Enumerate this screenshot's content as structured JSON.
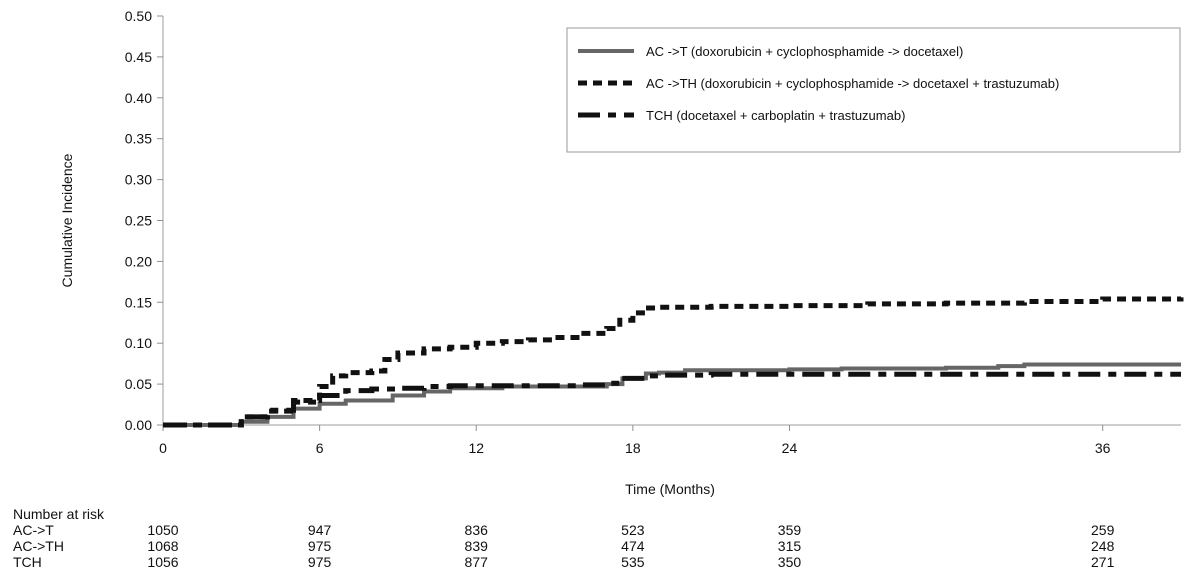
{
  "chart_data": {
    "type": "line",
    "title": "",
    "xlabel": "Time (Months)",
    "ylabel": "Cumulative Incidence",
    "xlim": [
      0,
      39
    ],
    "ylim": [
      0,
      0.5
    ],
    "x_ticks": [
      "0",
      "6",
      "12",
      "18",
      "24",
      "36"
    ],
    "y_ticks": [
      "0.00",
      "0.05",
      "0.10",
      "0.15",
      "0.20",
      "0.25",
      "0.30",
      "0.35",
      "0.40",
      "0.45",
      "0.50"
    ],
    "grid": false,
    "legend_position": "top-right",
    "series": [
      {
        "name": "AC ->T (doxorubicin + cyclophosphamide -> docetaxel)",
        "color": "#666666",
        "style": "solid",
        "points": [
          [
            0,
            0.0
          ],
          [
            2.6,
            0.0
          ],
          [
            3.0,
            0.004
          ],
          [
            4.0,
            0.01
          ],
          [
            5.0,
            0.02
          ],
          [
            6.0,
            0.026
          ],
          [
            7.0,
            0.03
          ],
          [
            8.0,
            0.03
          ],
          [
            8.8,
            0.036
          ],
          [
            10.0,
            0.041
          ],
          [
            11.0,
            0.045
          ],
          [
            12.0,
            0.045
          ],
          [
            13.0,
            0.047
          ],
          [
            14.0,
            0.047
          ],
          [
            16.0,
            0.047
          ],
          [
            17.0,
            0.05
          ],
          [
            17.6,
            0.057
          ],
          [
            18.5,
            0.063
          ],
          [
            19.0,
            0.064
          ],
          [
            20.0,
            0.067
          ],
          [
            21.0,
            0.067
          ],
          [
            24.0,
            0.068
          ],
          [
            26.0,
            0.069
          ],
          [
            30.0,
            0.07
          ],
          [
            32.0,
            0.072
          ],
          [
            33.0,
            0.074
          ],
          [
            36.0,
            0.074
          ],
          [
            39.0,
            0.074
          ]
        ]
      },
      {
        "name": "AC ->TH (doxorubicin + cyclophosphamide -> docetaxel + trastuzumab)",
        "color": "#111111",
        "style": "dotted",
        "points": [
          [
            0,
            0.0
          ],
          [
            2.5,
            0.0
          ],
          [
            3.0,
            0.01
          ],
          [
            4.0,
            0.017
          ],
          [
            5.0,
            0.03
          ],
          [
            6.0,
            0.047
          ],
          [
            6.5,
            0.06
          ],
          [
            7.0,
            0.064
          ],
          [
            8.0,
            0.066
          ],
          [
            8.5,
            0.08
          ],
          [
            9.0,
            0.088
          ],
          [
            10.0,
            0.093
          ],
          [
            11.0,
            0.095
          ],
          [
            12.0,
            0.1
          ],
          [
            13.0,
            0.102
          ],
          [
            14.0,
            0.104
          ],
          [
            15.0,
            0.107
          ],
          [
            16.0,
            0.112
          ],
          [
            17.0,
            0.118
          ],
          [
            17.5,
            0.128
          ],
          [
            18.0,
            0.137
          ],
          [
            18.5,
            0.143
          ],
          [
            19.0,
            0.144
          ],
          [
            21.0,
            0.145
          ],
          [
            24.0,
            0.146
          ],
          [
            27.0,
            0.148
          ],
          [
            30.0,
            0.149
          ],
          [
            33.0,
            0.151
          ],
          [
            36.0,
            0.154
          ],
          [
            39.0,
            0.156
          ]
        ]
      },
      {
        "name": "TCH (docetaxel + carboplatin + trastuzumab)",
        "color": "#111111",
        "style": "dashdot",
        "points": [
          [
            0,
            0.0
          ],
          [
            2.5,
            0.0
          ],
          [
            3.0,
            0.01
          ],
          [
            4.0,
            0.018
          ],
          [
            5.0,
            0.028
          ],
          [
            6.0,
            0.036
          ],
          [
            7.0,
            0.042
          ],
          [
            8.0,
            0.044
          ],
          [
            9.0,
            0.045
          ],
          [
            10.0,
            0.047
          ],
          [
            11.0,
            0.048
          ],
          [
            12.0,
            0.048
          ],
          [
            14.0,
            0.048
          ],
          [
            16.0,
            0.049
          ],
          [
            17.0,
            0.051
          ],
          [
            17.5,
            0.057
          ],
          [
            18.5,
            0.06
          ],
          [
            19.0,
            0.061
          ],
          [
            21.0,
            0.062
          ],
          [
            24.0,
            0.062
          ],
          [
            36.0,
            0.062
          ],
          [
            39.0,
            0.062
          ]
        ]
      }
    ],
    "risk_table": {
      "title": "Number at risk",
      "times": [
        0,
        6,
        12,
        18,
        24,
        36
      ],
      "rows": [
        {
          "label": "AC->T",
          "values": [
            "1050",
            "947",
            "836",
            "523",
            "359",
            "259"
          ]
        },
        {
          "label": "AC->TH",
          "values": [
            "1068",
            "975",
            "839",
            "474",
            "315",
            "248"
          ]
        },
        {
          "label": "TCH",
          "values": [
            "1056",
            "975",
            "877",
            "535",
            "350",
            "271"
          ]
        }
      ]
    }
  }
}
